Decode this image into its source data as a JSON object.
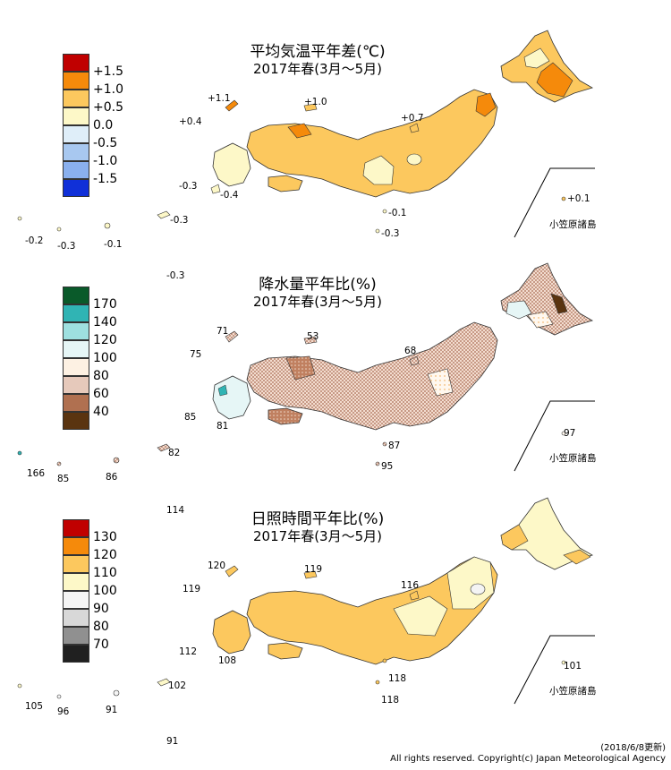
{
  "panels": [
    {
      "title": "平均気温平年差(℃)",
      "subtitle": "2017年春(3月～5月)",
      "legend": {
        "labels": [
          "+1.5",
          "+1.0",
          "+0.5",
          "0.0",
          "-0.5",
          "-1.0",
          "-1.5"
        ],
        "colors": [
          "#c00000",
          "#f58a0b",
          "#fcc85e",
          "#fdf8c8",
          "#dfeef9",
          "#a8c8f0",
          "#1030d8"
        ]
      },
      "values": {
        "v1": "+1.1",
        "v2": "+1.0",
        "v3": "+0.4",
        "v4": "+0.7",
        "v5": "-0.3",
        "v6": "-0.4",
        "v7": "-0.1",
        "v8": "-0.3",
        "v9": "+0.1",
        "v10": "-0.2",
        "v11": "-0.3",
        "v12": "-0.1",
        "v13": "-0.3",
        "v14": "-0.3"
      },
      "ogasawara": "小笠原諸島"
    },
    {
      "title": "降水量平年比(%)",
      "subtitle": "2017年春(3月～5月)",
      "legend": {
        "labels": [
          "170",
          "140",
          "120",
          "100",
          "80",
          "60",
          "40"
        ],
        "colors": [
          "#0a5a2a",
          "#30b4b4",
          "#9ee0e0",
          "#e6f6f6",
          "#fdf1e3",
          "#e6c9bb",
          "#b07050",
          "#5a3410"
        ]
      },
      "values": {
        "v1": "71",
        "v2": "53",
        "v3": "75",
        "v4": "68",
        "v5": "85",
        "v6": "81",
        "v7": "87",
        "v8": "95",
        "v9": "97",
        "v10": "166",
        "v11": "85",
        "v12": "86",
        "v13": "82"
      },
      "ogasawara": "小笠原諸島"
    },
    {
      "title": "日照時間平年比(%)",
      "subtitle": "2017年春(3月～5月)",
      "legend": {
        "labels": [
          "130",
          "120",
          "110",
          "100",
          "90",
          "80",
          "70"
        ],
        "colors": [
          "#c00000",
          "#f58a0b",
          "#fcc85e",
          "#fdf8c8",
          "#f4f4f4",
          "#d8d8d8",
          "#909090",
          "#202020"
        ]
      },
      "values": {
        "v0": "114",
        "v1": "120",
        "v2": "119",
        "v3": "119",
        "v4": "116",
        "v5": "112",
        "v6": "108",
        "v7": "118",
        "v8": "118",
        "v9": "101",
        "v10": "105",
        "v11": "96",
        "v12": "91",
        "v13": "102",
        "v14": "91"
      },
      "ogasawara": "小笠原諸島"
    }
  ],
  "p1_extra": {
    "dk": "-0.3"
  },
  "footer": {
    "date": "(2018/6/8更新)",
    "copyright": "All rights reserved. Copyright(c) Japan Meteorological Agency"
  }
}
